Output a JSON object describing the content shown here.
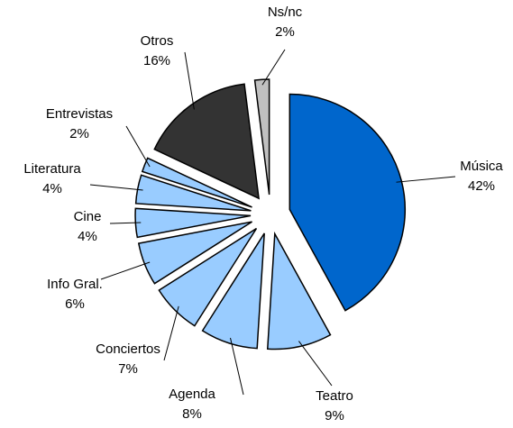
{
  "chart_data": {
    "type": "pie",
    "categories": [
      "Música",
      "Teatro",
      "Agenda",
      "Conciertos",
      "Info Gral.",
      "Cine",
      "Literatura",
      "Entrevistas",
      "Otros",
      "Ns/nc"
    ],
    "values": [
      42,
      9,
      8,
      7,
      6,
      4,
      4,
      2,
      16,
      2
    ],
    "value_labels": [
      "42%",
      "9%",
      "8%",
      "7%",
      "6%",
      "4%",
      "4%",
      "2%",
      "16%",
      "2%"
    ],
    "colors": [
      "#0066cc",
      "#99ccff",
      "#99ccff",
      "#99ccff",
      "#99ccff",
      "#99ccff",
      "#99ccff",
      "#99ccff",
      "#333333",
      "#c0c0c0"
    ]
  }
}
